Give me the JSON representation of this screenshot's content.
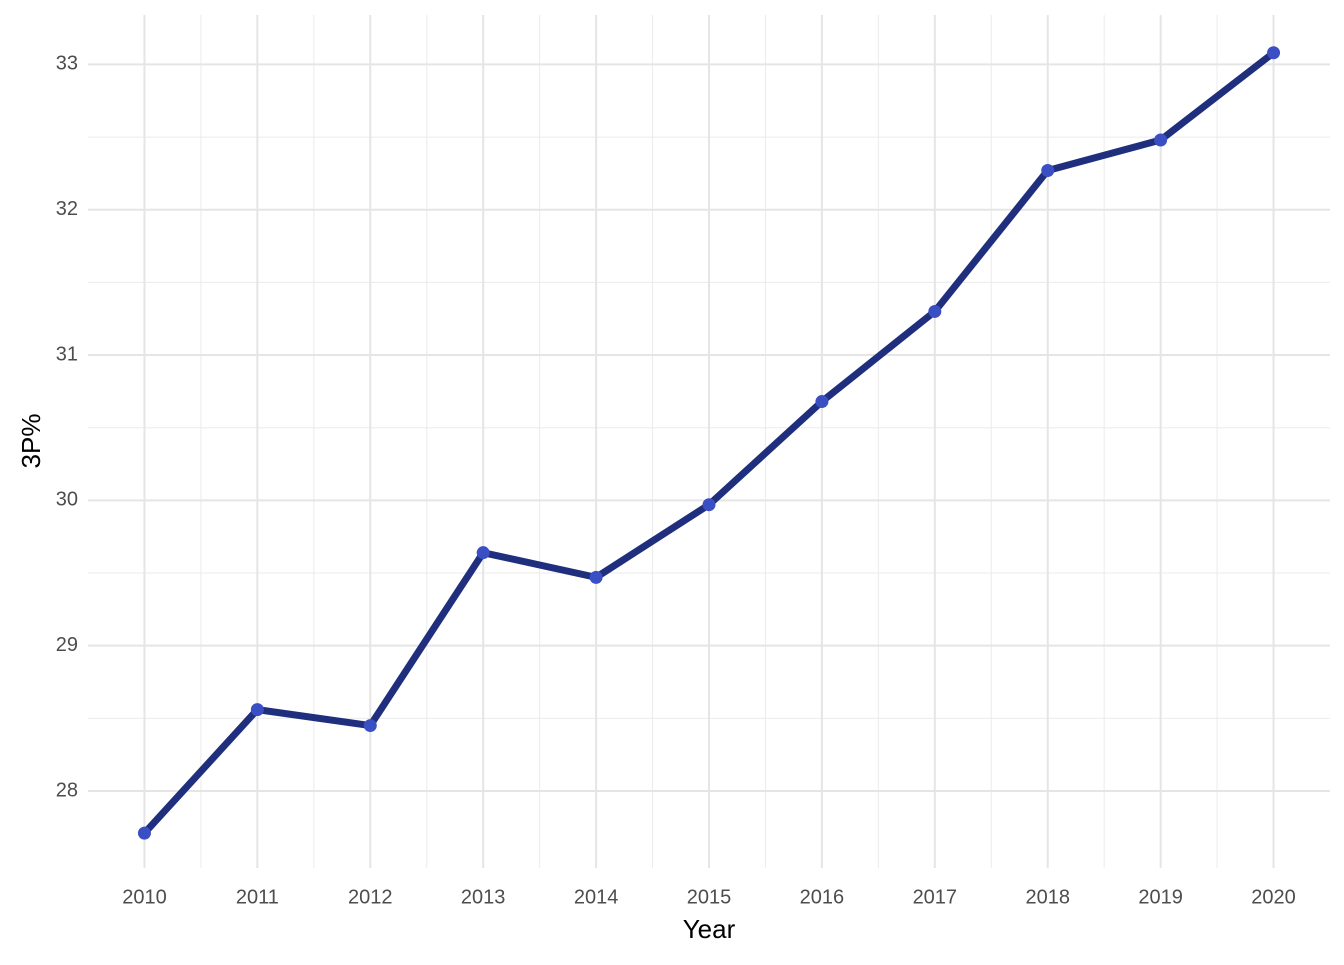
{
  "chart_data": {
    "type": "line",
    "x_label": "Year",
    "y_label": "3P%",
    "x": [
      2010,
      2011,
      2012,
      2013,
      2014,
      2015,
      2016,
      2017,
      2018,
      2019,
      2020
    ],
    "series": [
      {
        "color": "#1f2f7d",
        "point_color": "#3a4fc4",
        "values": [
          27.71,
          28.56,
          28.45,
          29.64,
          29.47,
          29.97,
          30.68,
          31.3,
          32.27,
          32.48,
          33.08
        ]
      }
    ],
    "xlim": [
      2009.5,
      2020.5
    ],
    "xticks": [
      2010,
      2011,
      2012,
      2013,
      2014,
      2015,
      2016,
      2017,
      2018,
      2019,
      2020
    ],
    "ylim": [
      27.47,
      33.34
    ],
    "yticks": [
      28,
      29,
      30,
      31,
      32,
      33
    ],
    "grid": true
  }
}
